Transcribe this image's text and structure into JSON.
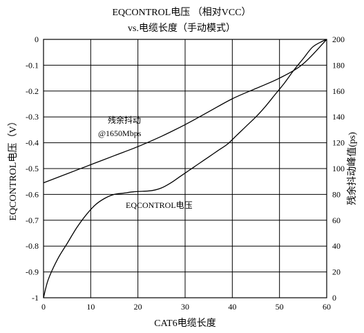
{
  "chart_data": {
    "type": "line",
    "title_line1": "EQCONTROL电压 （相对VCC）",
    "title_line2": "vs.电缆长度（手动模式）",
    "xlabel": "CAT6电缆长度",
    "ylabel_left": "EQCONTROL电压（V）",
    "ylabel_right": "残余抖动峰值(ps)",
    "xlim": [
      0,
      60
    ],
    "ylim_left": [
      -1,
      0
    ],
    "ylim_right": [
      0,
      200
    ],
    "x_ticks": [
      0,
      10,
      20,
      30,
      40,
      50,
      60
    ],
    "y_left_ticks": [
      0,
      -0.1,
      -0.2,
      -0.3,
      -0.4,
      -0.5,
      -0.6,
      -0.7,
      -0.8,
      -0.9,
      -1
    ],
    "y_right_ticks": [
      200,
      180,
      160,
      140,
      120,
      100,
      80,
      60,
      40,
      20,
      0
    ],
    "grid": true,
    "series": [
      {
        "name": "EQCONTROL电压",
        "axis": "left",
        "x": [
          0,
          1,
          3,
          5,
          7,
          9,
          11,
          13,
          15,
          17,
          19,
          21,
          23,
          25,
          27,
          29,
          31,
          33,
          35,
          37,
          39,
          41,
          43,
          45,
          47,
          49,
          51,
          53,
          55,
          57,
          59,
          60
        ],
        "y": [
          -1,
          -0.93,
          -0.85,
          -0.79,
          -0.73,
          -0.68,
          -0.64,
          -0.615,
          -0.6,
          -0.595,
          -0.59,
          -0.588,
          -0.585,
          -0.575,
          -0.555,
          -0.53,
          -0.505,
          -0.48,
          -0.455,
          -0.43,
          -0.405,
          -0.37,
          -0.335,
          -0.3,
          -0.26,
          -0.215,
          -0.17,
          -0.12,
          -0.075,
          -0.03,
          -0.008,
          0
        ]
      },
      {
        "name": "残余抖动 @1650Mbps",
        "axis": "right",
        "x": [
          0,
          5,
          10,
          15,
          20,
          25,
          30,
          35,
          40,
          45,
          50,
          55,
          60
        ],
        "y": [
          89,
          96,
          103,
          110,
          117,
          125,
          134,
          144,
          154,
          162,
          170,
          181,
          200
        ]
      }
    ],
    "annotations": [
      {
        "text_line1": "残余抖动",
        "text_line2": "@1650Mbps"
      },
      {
        "text": "EQCONTROL电压"
      }
    ]
  }
}
